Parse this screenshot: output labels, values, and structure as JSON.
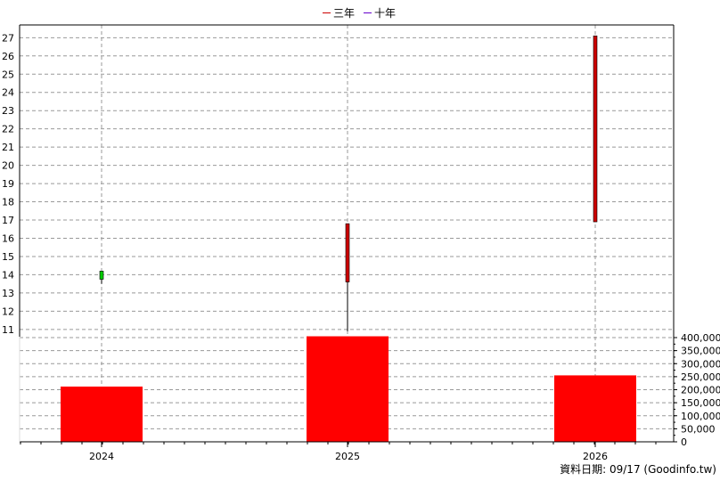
{
  "chart_data": {
    "type": "candlestick_with_volume",
    "legend": [
      {
        "name": "三年",
        "color": "#cc0000"
      },
      {
        "name": "十年",
        "color": "#6600cc"
      }
    ],
    "categories": [
      "2024",
      "2025",
      "2026"
    ],
    "price_axis": {
      "ylim": [
        10.6,
        27.7
      ],
      "ticks": [
        11,
        12,
        13,
        14,
        15,
        16,
        17,
        18,
        19,
        20,
        21,
        22,
        23,
        24,
        25,
        26,
        27
      ]
    },
    "candles": [
      {
        "x": "2024",
        "open": 13.75,
        "close": 14.2,
        "high": 14.2,
        "low": 13.5,
        "color": "#00cc00"
      },
      {
        "x": "2025",
        "open": 16.8,
        "close": 13.6,
        "high": 16.8,
        "low": 10.9,
        "color": "#cc0000"
      },
      {
        "x": "2026",
        "open": 27.1,
        "close": 16.9,
        "high": 27.1,
        "low": 16.9,
        "color": "#cc0000"
      }
    ],
    "volume_axis": {
      "ylim": [
        0,
        400000
      ],
      "tick_labels": [
        "400,000",
        "350,000",
        "300,000",
        "250,000",
        "200,000",
        "150,000",
        "100,000",
        "50,000",
        "0"
      ],
      "ticks": [
        400000,
        350000,
        300000,
        250000,
        200000,
        150000,
        100000,
        50000,
        0
      ]
    },
    "volume": [
      {
        "x": "2024",
        "value": 212000
      },
      {
        "x": "2025",
        "value": 405000
      },
      {
        "x": "2026",
        "value": 255000
      }
    ],
    "volume_color": "#ff0000",
    "grid": true
  },
  "footer": "資料日期: 09/17  (Goodinfo.tw)"
}
